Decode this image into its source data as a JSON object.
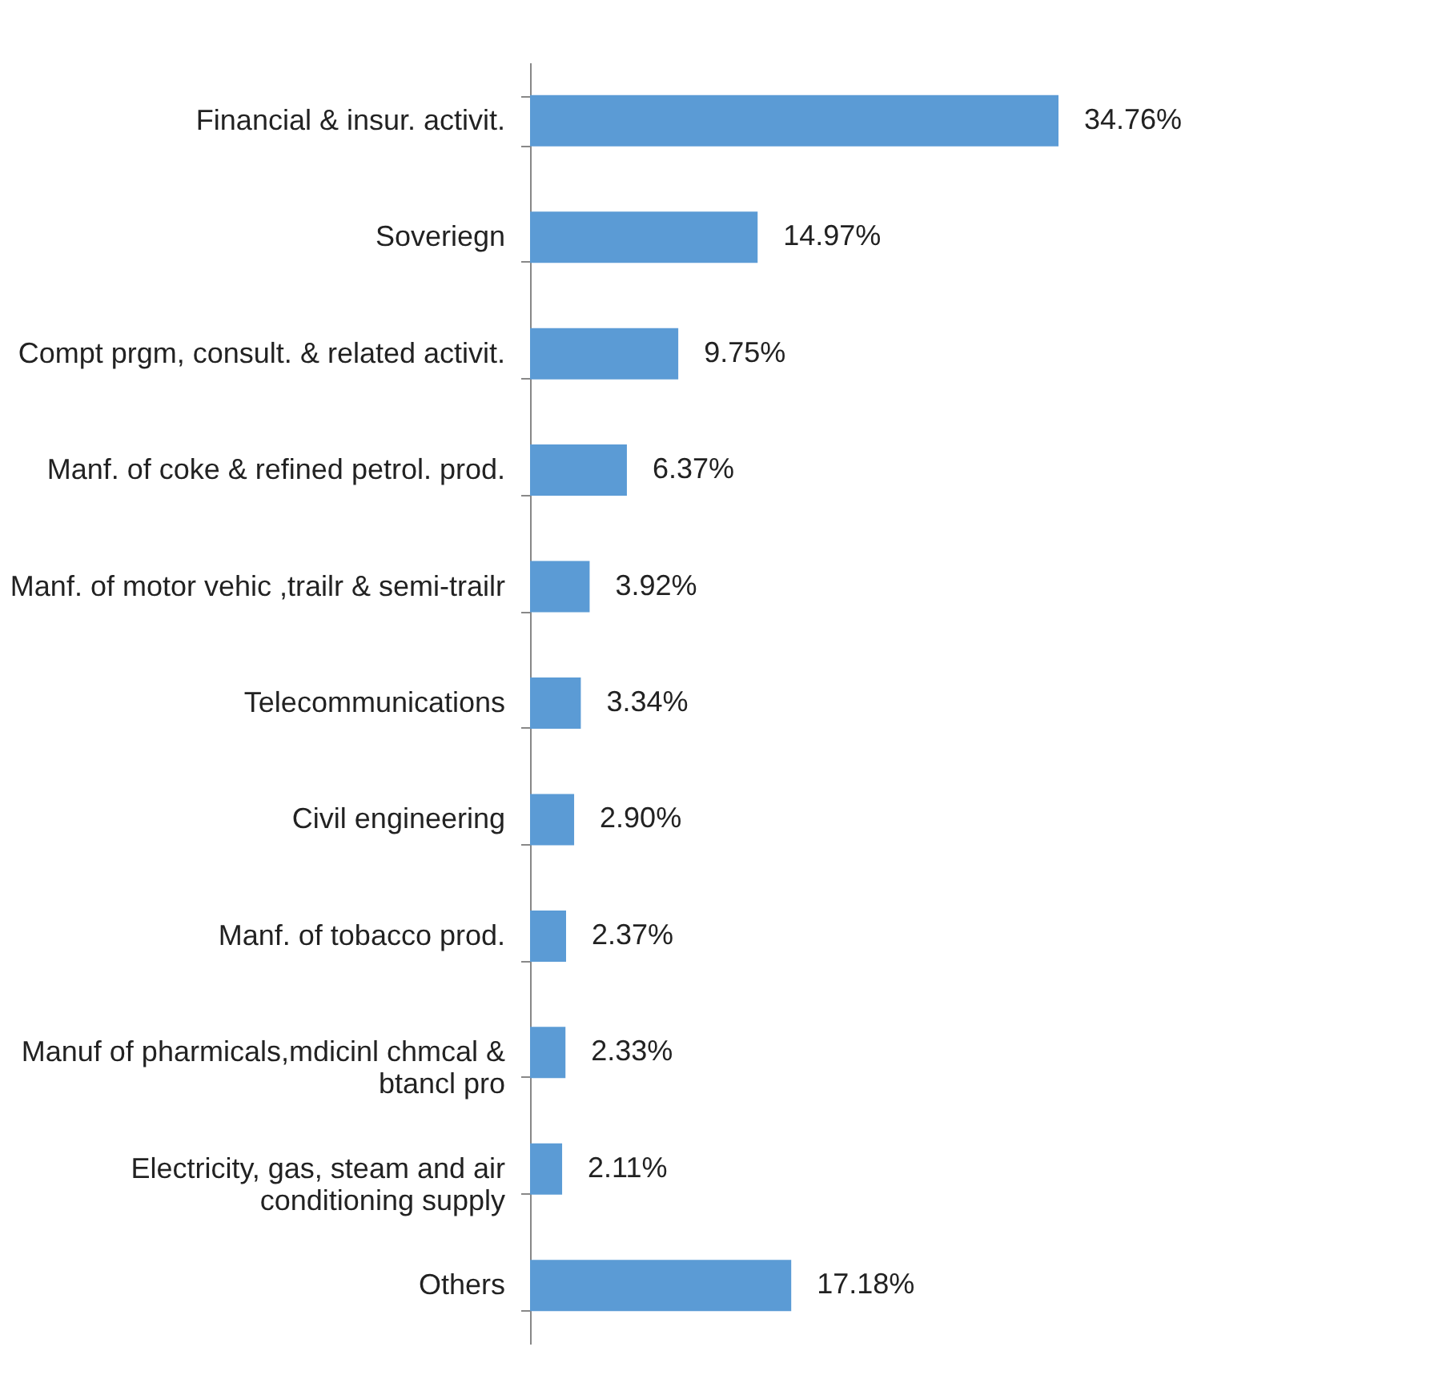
{
  "chart_data": {
    "type": "bar",
    "orientation": "horizontal",
    "categories": [
      "Financial & insur. activit.",
      "Soveriegn",
      "Compt prgm, consult. & related activit.",
      "Manf. of coke & refined petrol. prod.",
      "Manf. of motor vehic ,trailr & semi-trailr",
      "Telecommunications",
      "Civil engineering",
      "Manf. of tobacco prod.",
      "Manuf of pharmicals,mdicinl chmcal & btancl pro",
      "Electricity, gas, steam and air conditioning supply",
      "Others"
    ],
    "values": [
      34.76,
      14.97,
      9.75,
      6.37,
      3.92,
      3.34,
      2.9,
      2.37,
      2.33,
      2.11,
      17.18
    ],
    "value_labels": [
      "34.76%",
      "14.97%",
      "9.75%",
      "6.37%",
      "3.92%",
      "3.34%",
      "2.90%",
      "2.37%",
      "2.33%",
      "2.11%",
      "17.18%"
    ],
    "color": "#5b9bd5",
    "grid": false
  }
}
